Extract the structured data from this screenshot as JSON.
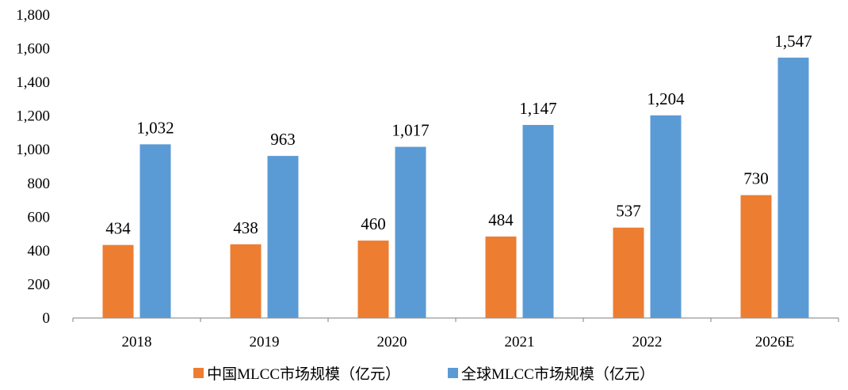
{
  "chart_data": {
    "type": "bar",
    "categories": [
      "2018",
      "2019",
      "2020",
      "2021",
      "2022",
      "2026E"
    ],
    "series": [
      {
        "name": "中国MLCC市场规模（亿元）",
        "values": [
          434,
          438,
          460,
          484,
          537,
          730
        ],
        "labels": [
          "434",
          "438",
          "460",
          "484",
          "537",
          "730"
        ],
        "color": "#ED7D31"
      },
      {
        "name": "全球MLCC市场规模（亿元）",
        "values": [
          1032,
          963,
          1017,
          1147,
          1204,
          1547
        ],
        "labels": [
          "1,032",
          "963",
          "1,017",
          "1,147",
          "1,204",
          "1,547"
        ],
        "color": "#5B9BD5"
      }
    ],
    "ylim": [
      0,
      1800
    ],
    "yticks": [
      "0",
      "200",
      "400",
      "600",
      "800",
      "1,000",
      "1,200",
      "1,400",
      "1,600",
      "1,800"
    ],
    "grid": false,
    "legend_position": "bottom",
    "title": "",
    "xlabel": "",
    "ylabel": ""
  }
}
